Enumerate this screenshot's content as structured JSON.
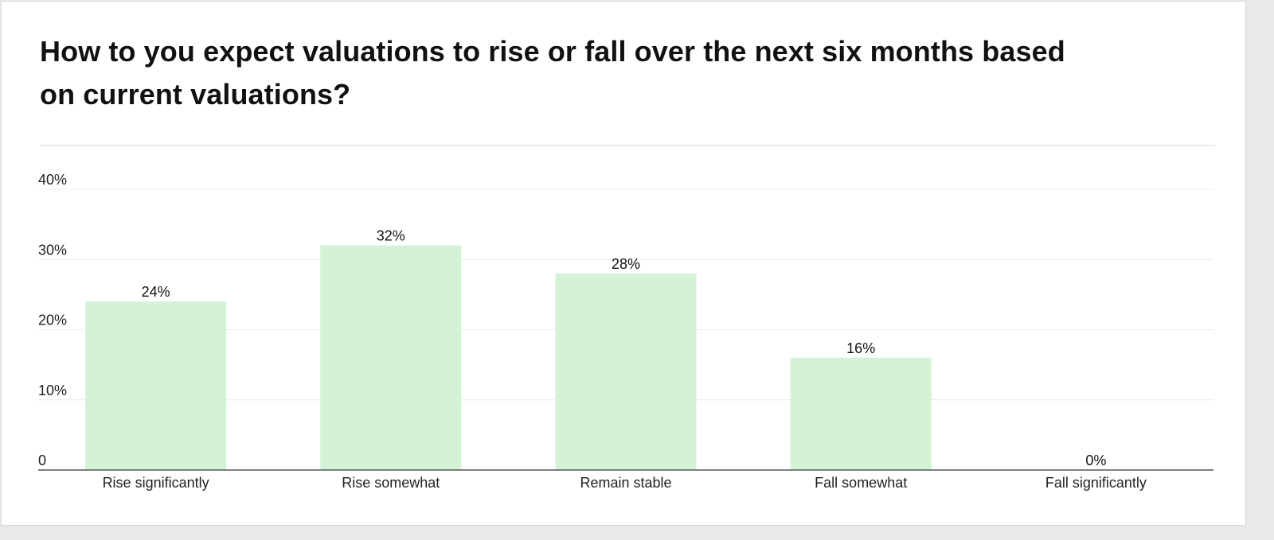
{
  "chart_data": {
    "type": "bar",
    "title": "How to you expect valuations to rise or fall over the next six months based on current valuations?",
    "xlabel": "",
    "ylabel": "",
    "categories": [
      "Rise significantly",
      "Rise somewhat",
      "Remain stable",
      "Fall somewhat",
      "Fall significantly"
    ],
    "values": [
      24,
      32,
      28,
      16,
      0
    ],
    "data_labels": [
      "24%",
      "32%",
      "28%",
      "16%",
      "0%"
    ],
    "ylim": [
      0,
      40
    ],
    "yticks": [
      0,
      10,
      20,
      30,
      40
    ],
    "ytick_labels": [
      "0",
      "10%",
      "20%",
      "30%",
      "40%"
    ],
    "grid": true,
    "legend": "none",
    "bar_color": "#d3f2d6"
  }
}
